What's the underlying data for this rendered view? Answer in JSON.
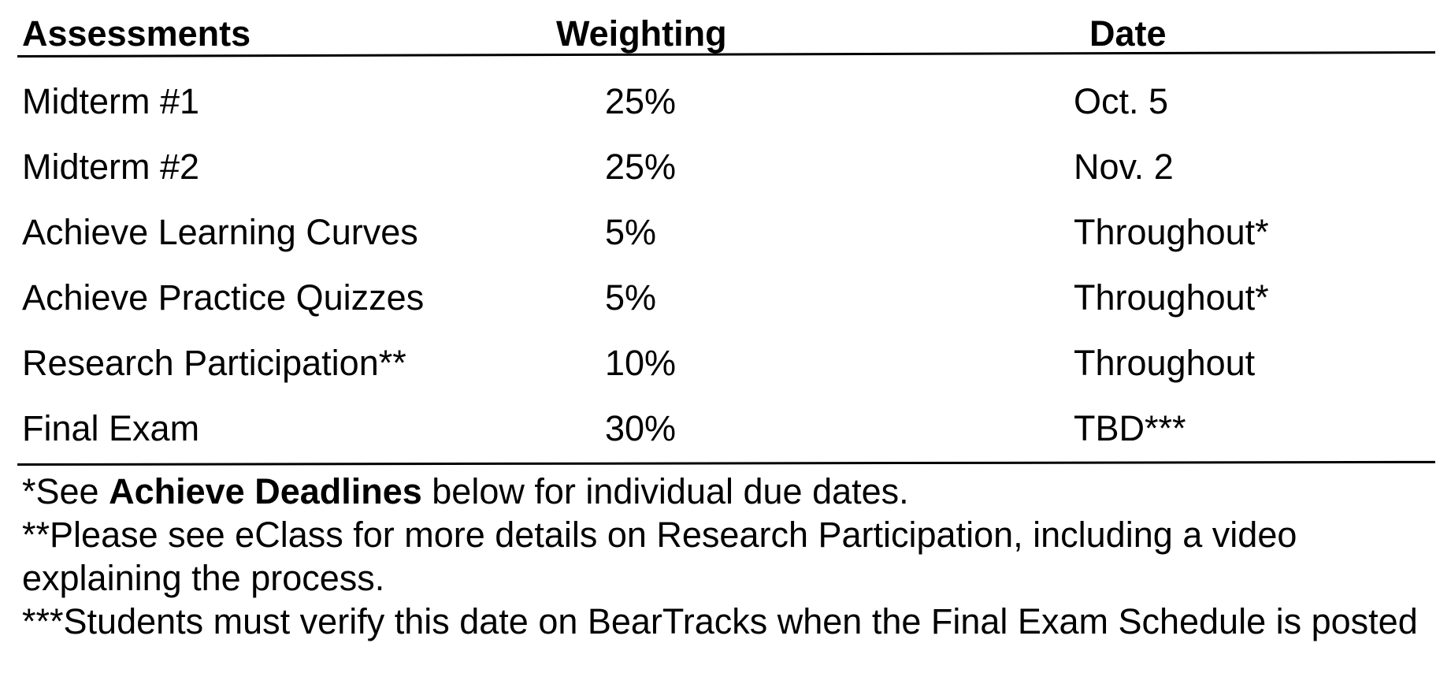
{
  "table": {
    "headers": {
      "assessments": "Assessments",
      "weighting": "Weighting",
      "date": "Date"
    },
    "rows": [
      {
        "assessment": "Midterm  #1",
        "weighting": "25%",
        "date": "Oct. 5"
      },
      {
        "assessment": "Midterm  #2",
        "weighting": "25%",
        "date": "Nov. 2"
      },
      {
        "assessment": "Achieve Learning Curves",
        "weighting": "5%",
        "date": "Throughout*"
      },
      {
        "assessment": "Achieve Practice Quizzes",
        "weighting": "5%",
        "date": "Throughout*"
      },
      {
        "assessment": "Research Participation**",
        "weighting": "10%",
        "date": "Throughout"
      },
      {
        "assessment": "Final Exam",
        "weighting": "30%",
        "date": "TBD***"
      }
    ]
  },
  "notes": {
    "note1_prefix": "*See ",
    "note1_bold": "Achieve Deadlines",
    "note1_suffix": " below for individual due dates.",
    "note2": "**Please see eClass for more details on Research Participation, including a video explaining the process.",
    "note3": "***Students must verify this date on BearTracks when the Final Exam Schedule is posted"
  },
  "colors": {
    "text": "#000000",
    "background": "#ffffff"
  }
}
